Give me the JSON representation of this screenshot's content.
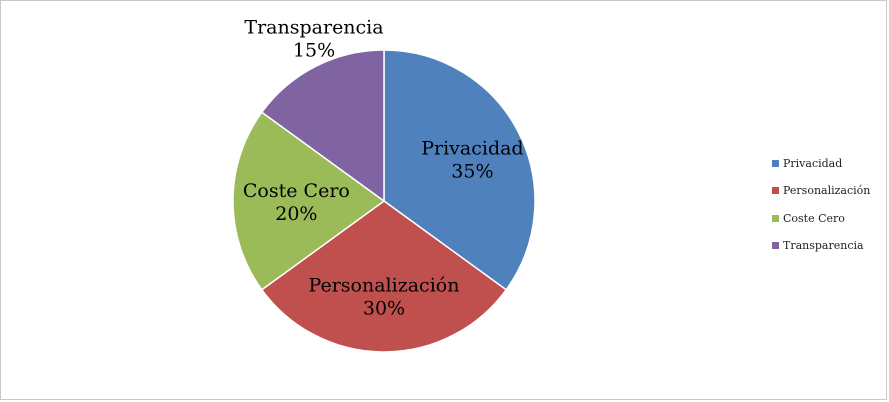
{
  "chart_data": {
    "type": "pie",
    "title": "",
    "categories": [
      "Privacidad",
      "Personalización",
      "Coste Cero",
      "Transparencia"
    ],
    "values": [
      35,
      30,
      20,
      15
    ],
    "value_labels": [
      "35%",
      "30%",
      "20%",
      "15%"
    ],
    "colors": [
      "#4f81bd",
      "#c0504d",
      "#9bbb59",
      "#8064a2"
    ],
    "start_angle": "12 o'clock",
    "direction": "clockwise",
    "legend": {
      "position": "right",
      "items": [
        "Privacidad",
        "Personalización",
        "Coste Cero",
        "Transparencia"
      ]
    }
  }
}
